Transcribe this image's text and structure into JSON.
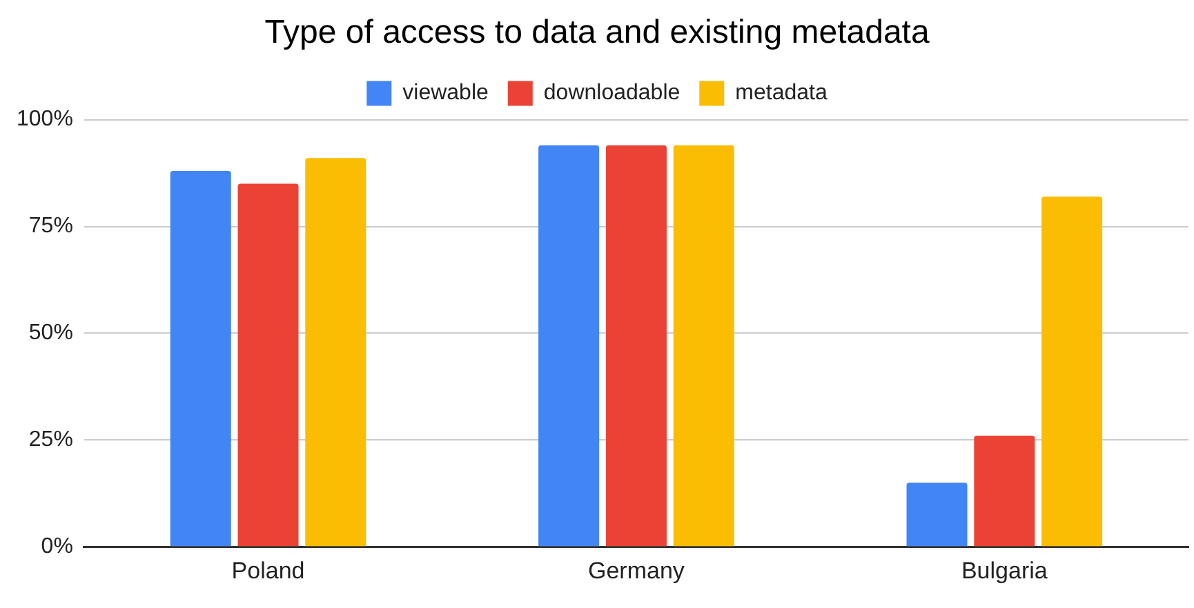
{
  "chart_data": {
    "type": "bar",
    "title": "Type of access to data and existing metadata",
    "categories": [
      "Poland",
      "Germany",
      "Bulgaria"
    ],
    "series": [
      {
        "name": "viewable",
        "color": "#4285f4",
        "values": [
          88,
          94,
          15
        ]
      },
      {
        "name": "downloadable",
        "color": "#ea4335",
        "values": [
          85,
          94,
          26
        ]
      },
      {
        "name": "metadata",
        "color": "#fbbc04",
        "values": [
          91,
          94,
          82
        ]
      }
    ],
    "ylim": [
      0,
      100
    ],
    "yticks": [
      {
        "value": 0,
        "label": "0%"
      },
      {
        "value": 25,
        "label": "25%"
      },
      {
        "value": 50,
        "label": "50%"
      },
      {
        "value": 75,
        "label": "75%"
      },
      {
        "value": 100,
        "label": "100%"
      }
    ],
    "grid": "y",
    "legend": "top"
  }
}
